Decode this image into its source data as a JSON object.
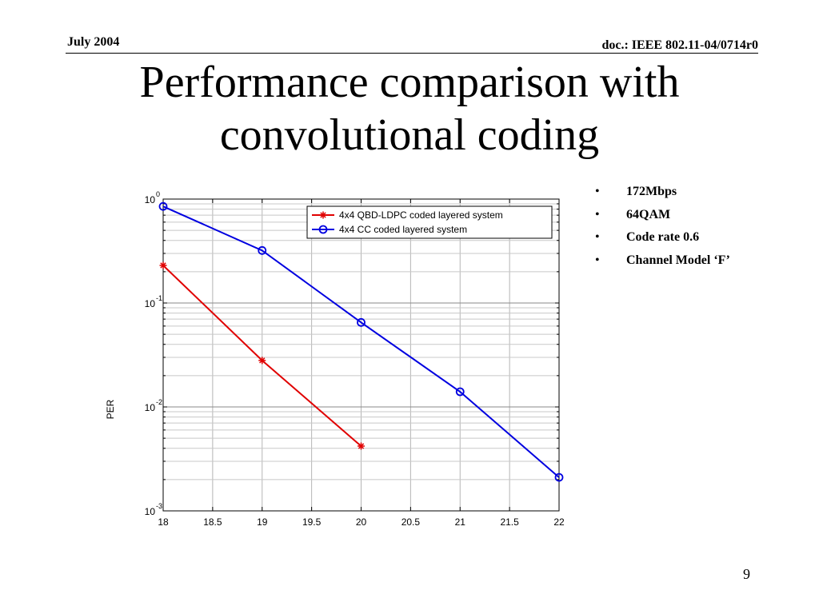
{
  "header": {
    "date": "July 2004",
    "doc": "doc.: IEEE 802.11-04/0714r0"
  },
  "slide": {
    "title_line1": "Performance comparison with",
    "title_line2": "convolutional coding",
    "bullets": [
      "172Mbps",
      "64QAM",
      "Code rate 0.6",
      "Channel Model ‘F’"
    ],
    "page_number": "9"
  },
  "chart_data": {
    "type": "line",
    "xlabel": "",
    "ylabel": "PER",
    "xlim": [
      18,
      22
    ],
    "ylim": [
      0.001,
      1
    ],
    "yscale": "log",
    "grid": true,
    "legend_position": "top-right",
    "x_ticks": [
      "18",
      "18.5",
      "19",
      "19.5",
      "20",
      "20.5",
      "21",
      "21.5",
      "22"
    ],
    "y_ticks": [
      {
        "value": 1,
        "base": "10",
        "exp": "0"
      },
      {
        "value": 0.1,
        "base": "10",
        "exp": "-1"
      },
      {
        "value": 0.01,
        "base": "10",
        "exp": "-2"
      },
      {
        "value": 0.001,
        "base": "10",
        "exp": "-3"
      }
    ],
    "series": [
      {
        "name": "4x4 QBD-LDPC coded layered system",
        "color": "#e00000",
        "marker": "star",
        "x": [
          18,
          19,
          20
        ],
        "y": [
          0.23,
          0.028,
          0.0042
        ]
      },
      {
        "name": "4x4 CC coded layered system",
        "color": "#0000e0",
        "marker": "circle",
        "x": [
          18,
          19,
          20,
          21,
          22
        ],
        "y": [
          0.85,
          0.32,
          0.065,
          0.014,
          0.0021
        ]
      }
    ]
  }
}
